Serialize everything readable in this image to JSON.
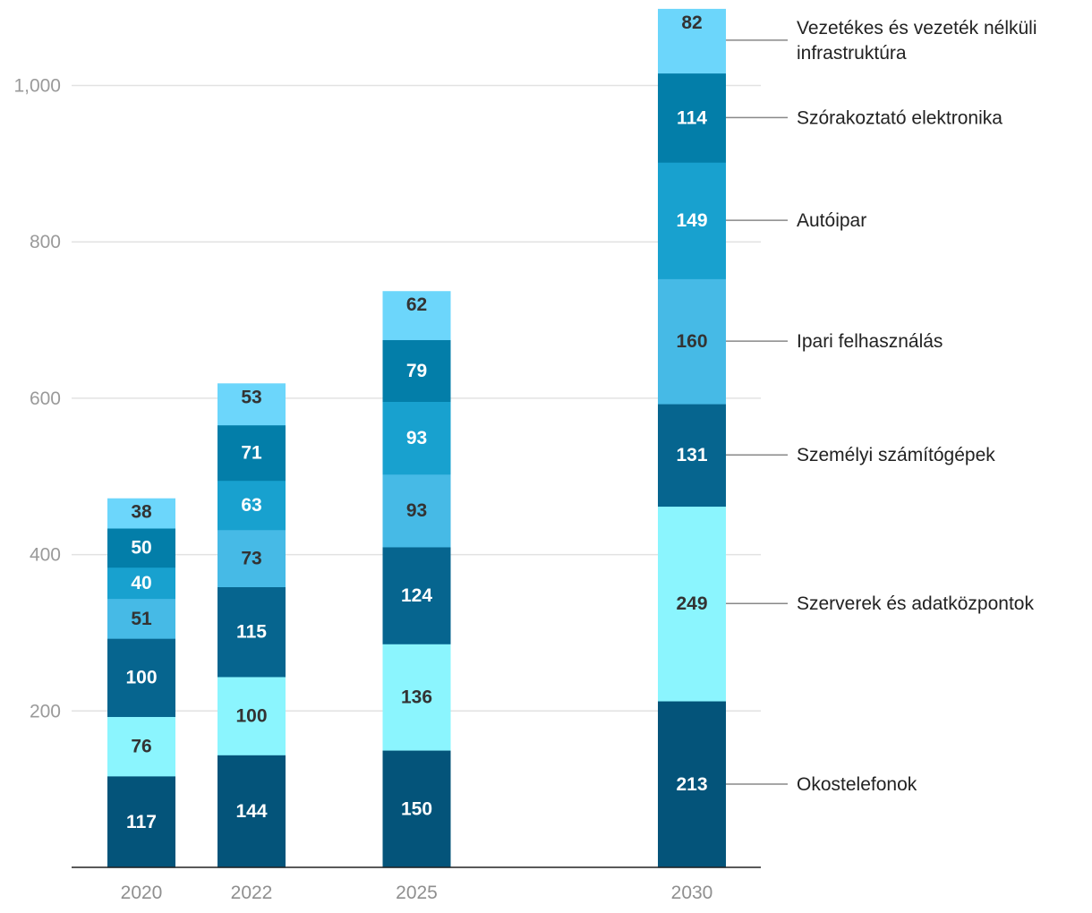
{
  "chart_data": {
    "type": "bar",
    "stacked": true,
    "categories": [
      "2020",
      "2022",
      "2025",
      "2030"
    ],
    "x": [
      2020,
      2022,
      2025,
      2030
    ],
    "series": [
      {
        "name": "Okostelefonok",
        "values": [
          117,
          144,
          150,
          213
        ],
        "color": "#04547a",
        "label_color": "#ffffff"
      },
      {
        "name": "Szerverek és adatközpontok",
        "values": [
          76,
          100,
          136,
          249
        ],
        "color": "#8bf5fe",
        "label_color": "#333333"
      },
      {
        "name": "Személyi számítógépek",
        "values": [
          100,
          115,
          124,
          131
        ],
        "color": "#06658f",
        "label_color": "#ffffff"
      },
      {
        "name": "Ipari felhasználás",
        "values": [
          51,
          73,
          93,
          160
        ],
        "color": "#46bae6",
        "label_color": "#333333"
      },
      {
        "name": "Autóipar",
        "values": [
          40,
          63,
          93,
          149
        ],
        "color": "#18a1cf",
        "label_color": "#ffffff"
      },
      {
        "name": "Szórakoztató elektronika",
        "values": [
          50,
          71,
          79,
          114
        ],
        "color": "#037ea9",
        "label_color": "#ffffff"
      },
      {
        "name": "Vezetékes és vezeték nélküli infrastruktúra",
        "values": [
          38,
          53,
          62,
          82
        ],
        "color": "#6cd6fb",
        "label_color": "#333333"
      }
    ],
    "legend_lines": [
      [
        "Okostelefonok"
      ],
      [
        "Szerverek és adatközpontok"
      ],
      [
        "Személyi számítógépek"
      ],
      [
        "Ipari felhasználás"
      ],
      [
        "Autóipar"
      ],
      [
        "Szórakoztató elektronika"
      ],
      [
        "Vezetékes és vezeték nélküli",
        "infrastruktúra"
      ]
    ],
    "yticks": [
      200,
      400,
      600,
      800,
      1000
    ],
    "ytick_labels": [
      "200",
      "400",
      "600",
      "800",
      "1,000"
    ],
    "ylim": [
      0,
      1100
    ],
    "legend_position": "right",
    "grid": true,
    "title": "",
    "xlabel": "",
    "ylabel": ""
  }
}
